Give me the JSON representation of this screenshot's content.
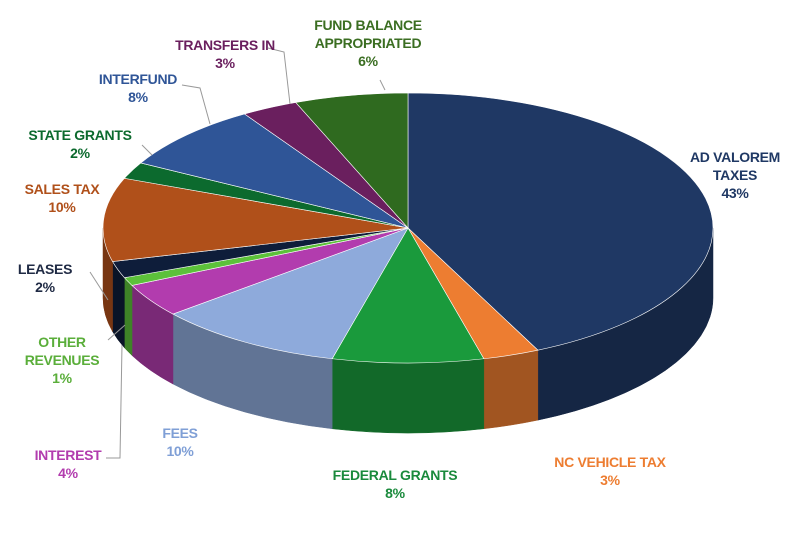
{
  "chart_data": {
    "type": "pie3d",
    "categories": [
      "AD VALOREM TAXES",
      "NC VEHICLE TAX",
      "FEDERAL GRANTS",
      "FEES",
      "INTEREST",
      "OTHER REVENUES",
      "LEASES",
      "SALES TAX",
      "STATE GRANTS",
      "INTERFUND",
      "TRANSFERS IN",
      "FUND BALANCE APPROPRIATED"
    ],
    "values": [
      43,
      3,
      8,
      10,
      4,
      1,
      2,
      10,
      2,
      8,
      3,
      6
    ],
    "value_labels": [
      "43%",
      "3%",
      "8%",
      "10%",
      "4%",
      "1%",
      "2%",
      "10%",
      "2%",
      "8%",
      "3%",
      "6%"
    ],
    "colors": [
      "#1f3864",
      "#ed7d31",
      "#1a9a3c",
      "#8eaadb",
      "#b23cae",
      "#5cc13a",
      "#0e1d3a",
      "#b0501a",
      "#0c6a2e",
      "#2f5597",
      "#6a1f5e",
      "#2f6a1f"
    ],
    "label_colors": [
      "#1f3864",
      "#ed7d31",
      "#1a8a3c",
      "#7f9fd6",
      "#b23cae",
      "#5aae3a",
      "#1f2a44",
      "#b0501a",
      "#0c6a2e",
      "#2f5597",
      "#6a1f5e",
      "#3b6e22"
    ]
  }
}
